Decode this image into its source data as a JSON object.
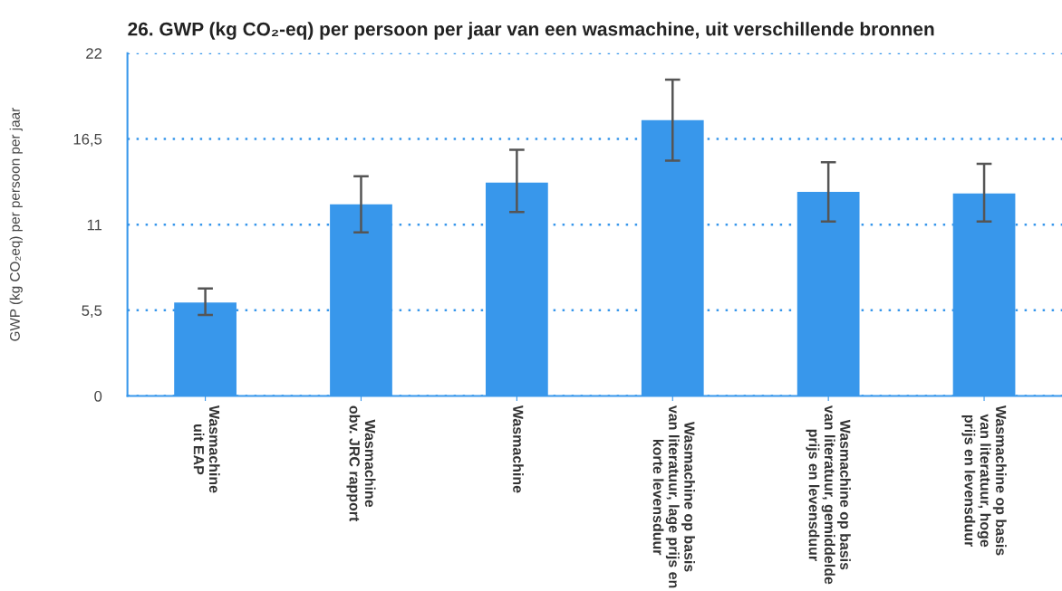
{
  "chart_data": {
    "type": "bar",
    "title": "26. GWP (kg CO₂-eq) per persoon per jaar van een wasmachine, uit verschillende bronnen",
    "ylabel": "GWP (kg CO₂eq) per persoon per jaar",
    "categories": [
      "Wasmachine\nuit EAP",
      "Wasmachine\nobv. JRC rapport",
      "Wasmachine",
      "Wasmachine op basis\nvan literatuur, lage prijs en\nkorte levensduur",
      "Wasmachine op basis\nvan literatuur, gemiddelde\nprijs en levensduur",
      "Wasmachine op basis\nvan literatuur, hoge\nprijs en levensduur"
    ],
    "values": [
      6.0,
      12.3,
      13.7,
      17.7,
      13.1,
      13.0
    ],
    "errors": [
      [
        5.2,
        6.9
      ],
      [
        10.5,
        14.1
      ],
      [
        11.8,
        15.8
      ],
      [
        15.1,
        20.3
      ],
      [
        11.2,
        15.0
      ],
      [
        11.2,
        14.9
      ]
    ],
    "color": "#3897eb",
    "ylim": [
      0,
      22
    ],
    "yticks": [
      0,
      {
        "value": 5.5,
        "label": "5,5"
      },
      11,
      {
        "value": 16.5,
        "label": "16,5"
      },
      22
    ],
    "grid": "y"
  }
}
